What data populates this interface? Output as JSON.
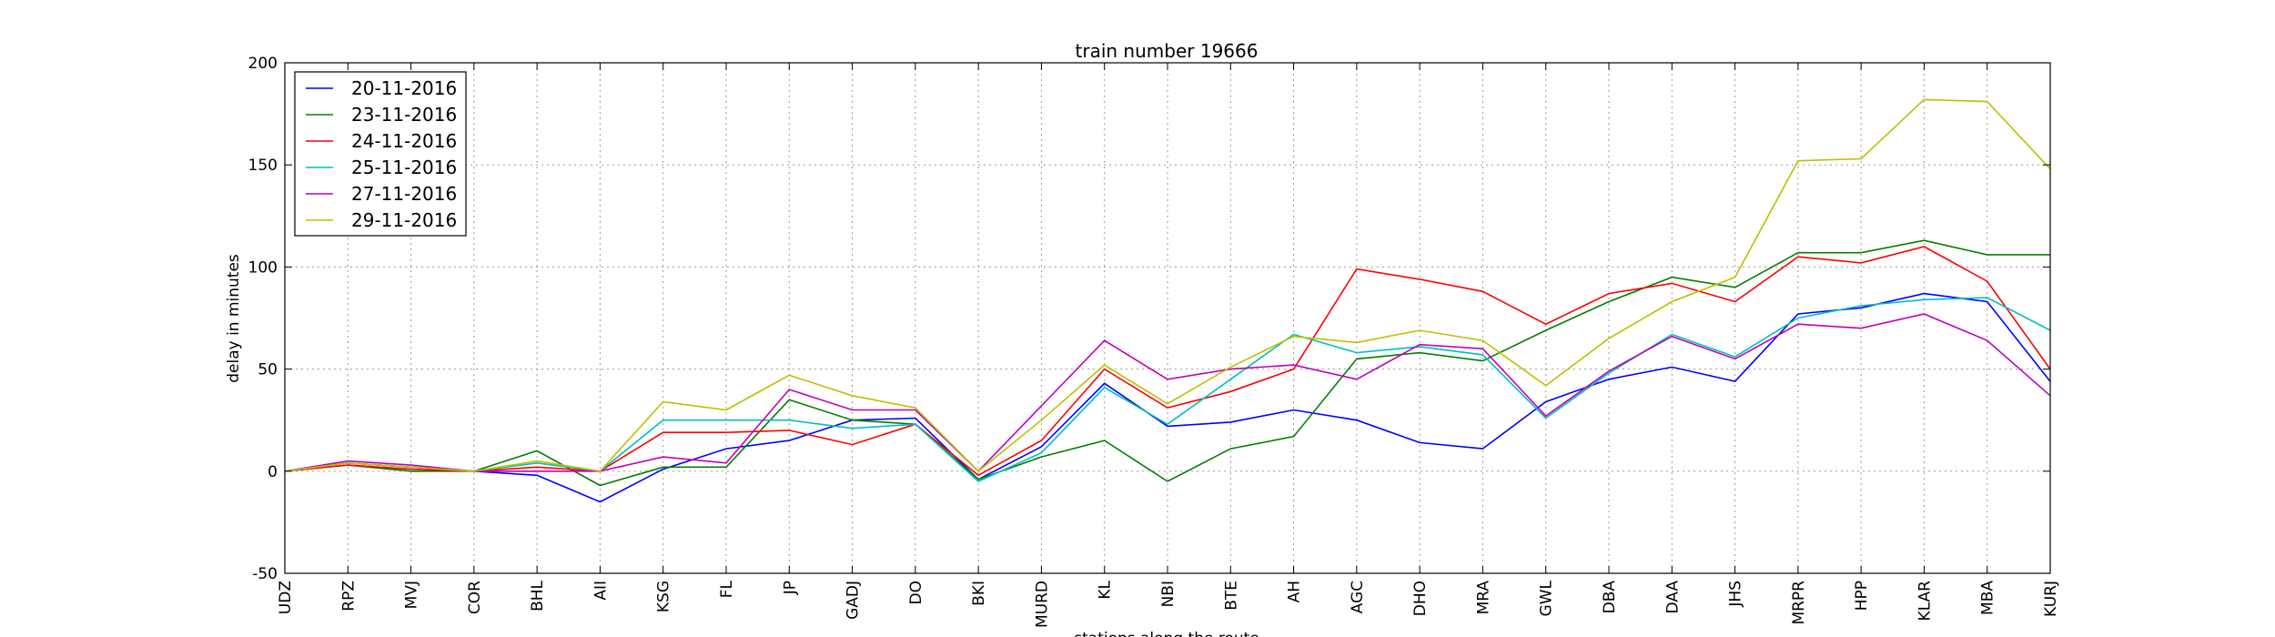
{
  "chart_data": {
    "type": "line",
    "title": "train number 19666",
    "xlabel": "stations along the route",
    "ylabel": "delay in minutes",
    "ylim": [
      -50,
      200
    ],
    "yticks": [
      -50,
      0,
      50,
      100,
      150,
      200
    ],
    "grid": true,
    "legend_position": "top-left",
    "categories": [
      "UDZ",
      "RPZ",
      "MVJ",
      "COR",
      "BHL",
      "AII",
      "KSG",
      "FL",
      "JP",
      "GADJ",
      "DO",
      "BKI",
      "MURD",
      "KL",
      "NBI",
      "BTE",
      "AH",
      "AGC",
      "DHO",
      "MRA",
      "GWL",
      "DBA",
      "DAA",
      "JHS",
      "MRPR",
      "HPP",
      "KLAR",
      "MBA",
      "KURJ"
    ],
    "series": [
      {
        "name": "20-11-2016",
        "color": "#0000ff",
        "values": [
          0,
          4,
          2,
          0,
          -2,
          -15,
          1,
          11,
          15,
          25,
          26,
          -4,
          12,
          43,
          22,
          24,
          30,
          25,
          14,
          11,
          34,
          45,
          51,
          44,
          77,
          80,
          87,
          83,
          44
        ]
      },
      {
        "name": "23-11-2016",
        "color": "#008000",
        "values": [
          0,
          3,
          0,
          0,
          10,
          -7,
          2,
          2,
          35,
          25,
          23,
          -4,
          7,
          15,
          -5,
          11,
          17,
          55,
          58,
          54,
          69,
          83,
          95,
          90,
          107,
          107,
          113,
          106,
          106
        ]
      },
      {
        "name": "24-11-2016",
        "color": "#ff0000",
        "values": [
          0,
          3,
          1,
          0,
          2,
          0,
          19,
          19,
          20,
          13,
          23,
          -2,
          15,
          50,
          31,
          39,
          50,
          99,
          94,
          88,
          72,
          87,
          92,
          83,
          105,
          102,
          110,
          93,
          50
        ]
      },
      {
        "name": "25-11-2016",
        "color": "#00bfbf",
        "values": [
          0,
          4,
          2,
          0,
          4,
          0,
          25,
          25,
          25,
          21,
          23,
          -5,
          9,
          41,
          23,
          45,
          67,
          58,
          61,
          57,
          26,
          48,
          67,
          56,
          75,
          81,
          84,
          85,
          69
        ]
      },
      {
        "name": "27-11-2016",
        "color": "#bf00bf",
        "values": [
          0,
          5,
          3,
          0,
          0,
          0,
          7,
          4,
          40,
          30,
          30,
          0,
          32,
          64,
          45,
          50,
          52,
          45,
          62,
          60,
          27,
          49,
          66,
          55,
          72,
          70,
          77,
          64,
          37
        ]
      },
      {
        "name": "29-11-2016",
        "color": "#bfbf00",
        "values": [
          0,
          4,
          2,
          0,
          5,
          0,
          34,
          30,
          47,
          37,
          31,
          0,
          25,
          52,
          33,
          51,
          66,
          63,
          69,
          64,
          42,
          65,
          83,
          95,
          152,
          153,
          182,
          181,
          148
        ]
      }
    ]
  }
}
